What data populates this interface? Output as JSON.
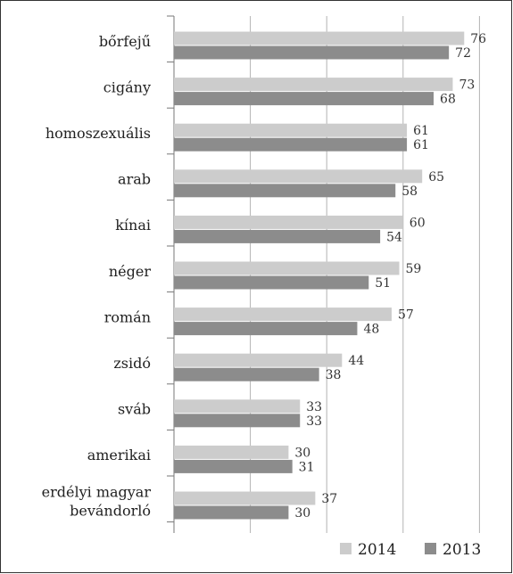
{
  "chart_data": {
    "type": "bar",
    "orientation": "horizontal",
    "categories": [
      "bőrfejű",
      "cigány",
      "homoszexuális",
      "arab",
      "kínai",
      "néger",
      "román",
      "zsidó",
      "sváb",
      "amerikai",
      "erdélyi magyar bevándorló"
    ],
    "series": [
      {
        "name": "2014",
        "color": "#cccccc",
        "values": [
          76,
          73,
          61,
          65,
          60,
          59,
          57,
          44,
          33,
          30,
          37
        ]
      },
      {
        "name": "2013",
        "color": "#8c8c8c",
        "values": [
          72,
          68,
          61,
          58,
          54,
          51,
          48,
          38,
          33,
          31,
          30
        ]
      }
    ],
    "xlim": [
      0,
      80
    ],
    "grid": true,
    "legend_position": "bottom-right"
  }
}
